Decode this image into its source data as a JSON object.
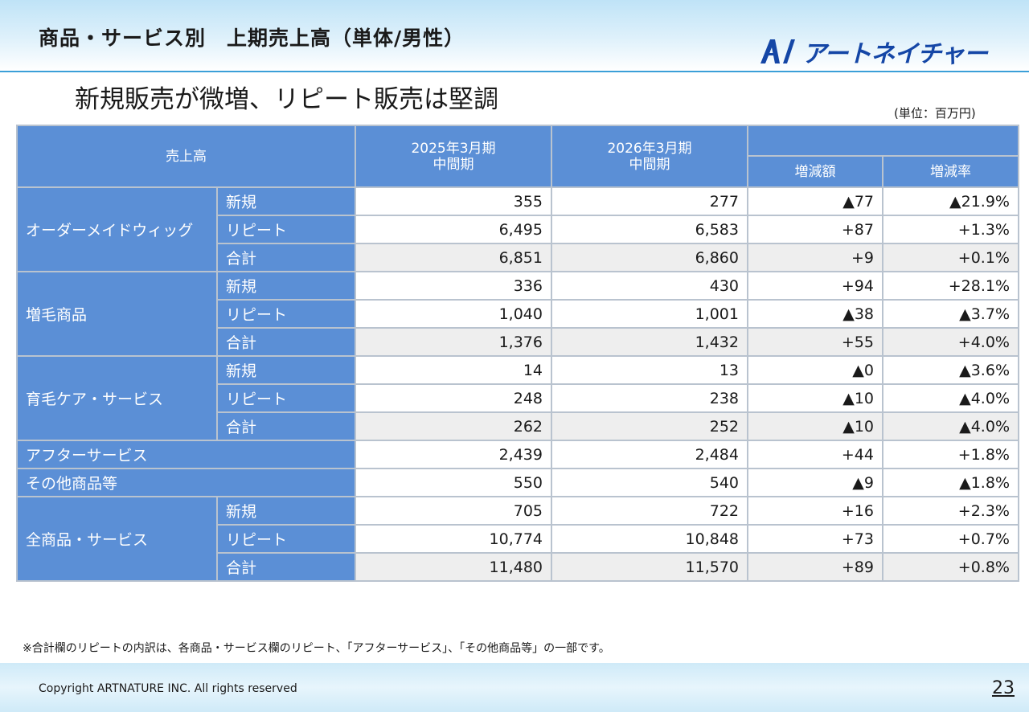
{
  "header": {
    "title": "商品・サービス別　上期売上高（単体/男性）",
    "logo_text": "アートネイチャー",
    "logo_mark": "artnature-logo-mark"
  },
  "subtitle": "新規販売が微増、リピート販売は堅調",
  "unit": "(単位：百万円)",
  "table": {
    "headers": {
      "sales": "売上高",
      "prev": "2025年3月期\n中間期",
      "curr": "2026年3月期\n中間期",
      "diff": "増減額",
      "rate": "増減率"
    },
    "groups": [
      {
        "label": "オーダーメイドウィッグ",
        "rows": [
          {
            "sub": "新規",
            "prev": "355",
            "curr": "277",
            "diff": "▲77",
            "rate": "▲21.9%"
          },
          {
            "sub": "リピート",
            "prev": "6,495",
            "curr": "6,583",
            "diff": "+87",
            "rate": "+1.3%"
          },
          {
            "sub": "合計",
            "prev": "6,851",
            "curr": "6,860",
            "diff": "+9",
            "rate": "+0.1%"
          }
        ]
      },
      {
        "label": "増毛商品",
        "rows": [
          {
            "sub": "新規",
            "prev": "336",
            "curr": "430",
            "diff": "+94",
            "rate": "+28.1%"
          },
          {
            "sub": "リピート",
            "prev": "1,040",
            "curr": "1,001",
            "diff": "▲38",
            "rate": "▲3.7%"
          },
          {
            "sub": "合計",
            "prev": "1,376",
            "curr": "1,432",
            "diff": "+55",
            "rate": "+4.0%"
          }
        ]
      },
      {
        "label": "育毛ケア・サービス",
        "rows": [
          {
            "sub": "新規",
            "prev": "14",
            "curr": "13",
            "diff": "▲0",
            "rate": "▲3.6%"
          },
          {
            "sub": "リピート",
            "prev": "248",
            "curr": "238",
            "diff": "▲10",
            "rate": "▲4.0%"
          },
          {
            "sub": "合計",
            "prev": "262",
            "curr": "252",
            "diff": "▲10",
            "rate": "▲4.0%"
          }
        ]
      }
    ],
    "singles": [
      {
        "label": "アフターサービス",
        "prev": "2,439",
        "curr": "2,484",
        "diff": "+44",
        "rate": "+1.8%"
      },
      {
        "label": "その他商品等",
        "prev": "550",
        "curr": "540",
        "diff": "▲9",
        "rate": "▲1.8%"
      }
    ],
    "total_group": {
      "label": "全商品・サービス",
      "rows": [
        {
          "sub": "新規",
          "prev": "705",
          "curr": "722",
          "diff": "+16",
          "rate": "+2.3%"
        },
        {
          "sub": "リピート",
          "prev": "10,774",
          "curr": "10,848",
          "diff": "+73",
          "rate": "+0.7%"
        },
        {
          "sub": "合計",
          "prev": "11,480",
          "curr": "11,570",
          "diff": "+89",
          "rate": "+0.8%"
        }
      ]
    }
  },
  "footnote": "※合計欄のリピートの内訳は、各商品・サービス欄のリピート、「アフターサービス」、「その他商品等」の一部です。",
  "footer": {
    "copyright": "Copyright ARTNATURE INC. All rights reserved",
    "page_number": "23"
  },
  "colors": {
    "header_blue": "#5b8fd6",
    "logo_blue": "#1446a6",
    "accent_line": "#3b9fd8"
  }
}
